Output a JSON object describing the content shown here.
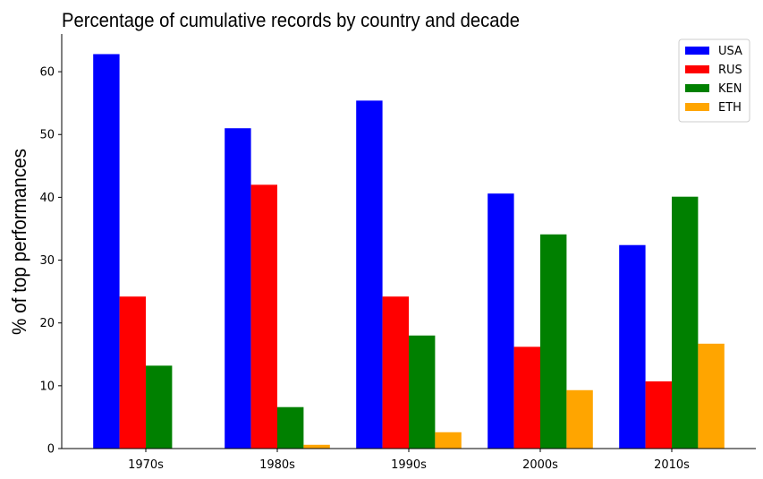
{
  "chart_data": {
    "type": "bar",
    "title": "Percentage of cumulative records by country and decade",
    "xlabel": "",
    "ylabel": "% of top performances",
    "categories": [
      "1970s",
      "1980s",
      "1990s",
      "2000s",
      "2010s"
    ],
    "series": [
      {
        "name": "USA",
        "color": "#0000ff",
        "values": [
          62.8,
          51.0,
          55.4,
          40.6,
          32.4
        ]
      },
      {
        "name": "RUS",
        "color": "#ff0000",
        "values": [
          24.2,
          42.0,
          24.2,
          16.2,
          10.7
        ]
      },
      {
        "name": "KEN",
        "color": "#008000",
        "values": [
          13.2,
          6.6,
          18.0,
          34.1,
          40.1
        ]
      },
      {
        "name": "ETH",
        "color": "#ffa500",
        "values": [
          0.0,
          0.6,
          2.6,
          9.3,
          16.7
        ]
      }
    ],
    "ylim": [
      0,
      66
    ],
    "yticks": [
      0,
      10,
      20,
      30,
      40,
      50,
      60
    ],
    "grid": false,
    "legend_position": "top-right"
  }
}
